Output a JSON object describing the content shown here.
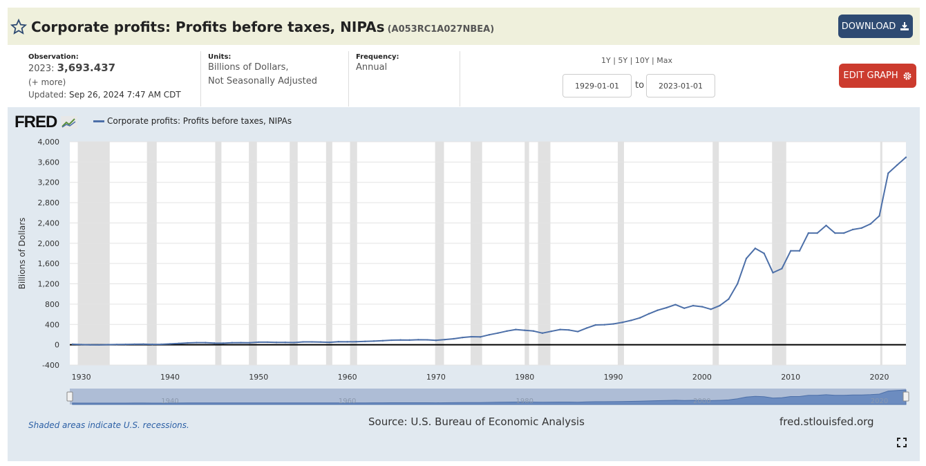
{
  "header": {
    "title": "Corporate profits: Profits before taxes, NIPAs",
    "series_id": "(A053RC1A027NBEA)",
    "download_label": "DOWNLOAD",
    "star_icon": "star-outline-icon",
    "download_icon": "download-icon"
  },
  "observation": {
    "label": "Observation:",
    "period": "2023:",
    "value": "3,693.437",
    "more": "(+ more)",
    "updated_label": "Updated:",
    "updated_value": "Sep 26, 2024 7:47 AM CDT"
  },
  "units": {
    "label": "Units:",
    "line1": "Billions of Dollars,",
    "line2": "Not Seasonally Adjusted"
  },
  "frequency": {
    "label": "Frequency:",
    "value": "Annual"
  },
  "range": {
    "links": [
      "1Y",
      "5Y",
      "10Y",
      "Max"
    ],
    "start": "1929-01-01",
    "to": "to",
    "end": "2023-01-01"
  },
  "edit_graph_label": "EDIT GRAPH",
  "colors": {
    "series": "#4c6fa8",
    "recession": "#e1e1e1",
    "panel": "#e1e9f0",
    "download": "#2e4a72",
    "edit": "#cc3b2e"
  },
  "footer": {
    "recession_note": "Shaded areas indicate U.S. recessions.",
    "source": "Source: U.S. Bureau of Economic Analysis",
    "url": "fred.stlouisfed.org"
  },
  "logo_text": "FRED",
  "chart_data": {
    "type": "line",
    "ylabel": "Billions of Dollars",
    "ylim": [
      -400,
      4000
    ],
    "xlim": [
      1928.7,
      2023
    ],
    "y_ticks": [
      -400,
      0,
      400,
      800,
      1200,
      1600,
      2000,
      2400,
      2800,
      3200,
      3600,
      4000
    ],
    "y_tick_labels": [
      "-400",
      "0",
      "400",
      "800",
      "1,200",
      "1,600",
      "2,000",
      "2,400",
      "2,800",
      "3,200",
      "3,600",
      "4,000"
    ],
    "x_ticks": [
      1930,
      1940,
      1950,
      1960,
      1970,
      1980,
      1990,
      2000,
      2010,
      2020
    ],
    "navigator_ticks": [
      1940,
      1960,
      1980,
      2000,
      2020
    ],
    "grid": true,
    "recessions": [
      [
        1929.6,
        1933.2
      ],
      [
        1937.4,
        1938.5
      ],
      [
        1945.1,
        1945.8
      ],
      [
        1948.9,
        1949.8
      ],
      [
        1953.5,
        1954.4
      ],
      [
        1957.6,
        1958.3
      ],
      [
        1960.3,
        1961.1
      ],
      [
        1969.9,
        1970.9
      ],
      [
        1973.9,
        1975.2
      ],
      [
        1980.0,
        1980.5
      ],
      [
        1981.5,
        1982.9
      ],
      [
        1990.5,
        1991.2
      ],
      [
        2001.2,
        2001.9
      ],
      [
        2007.9,
        2009.5
      ],
      [
        2020.1,
        2020.3
      ]
    ],
    "series": [
      {
        "name": "Corporate profits: Profits before taxes, NIPAs",
        "x": [
          1929,
          1930,
          1931,
          1932,
          1933,
          1934,
          1935,
          1936,
          1937,
          1938,
          1939,
          1940,
          1941,
          1942,
          1943,
          1944,
          1945,
          1946,
          1947,
          1948,
          1949,
          1950,
          1951,
          1952,
          1953,
          1954,
          1955,
          1956,
          1957,
          1958,
          1959,
          1960,
          1961,
          1962,
          1963,
          1964,
          1965,
          1966,
          1967,
          1968,
          1969,
          1970,
          1971,
          1972,
          1973,
          1974,
          1975,
          1976,
          1977,
          1978,
          1979,
          1980,
          1981,
          1982,
          1983,
          1984,
          1985,
          1986,
          1987,
          1988,
          1989,
          1990,
          1991,
          1992,
          1993,
          1994,
          1995,
          1996,
          1997,
          1998,
          1999,
          2000,
          2001,
          2002,
          2003,
          2004,
          2005,
          2006,
          2007,
          2008,
          2009,
          2010,
          2011,
          2012,
          2013,
          2014,
          2015,
          2016,
          2017,
          2018,
          2019,
          2020,
          2021,
          2022,
          2023
        ],
        "values": [
          10,
          3,
          -1,
          -3,
          2,
          5,
          7,
          10,
          11,
          7,
          9,
          17,
          27,
          36,
          42,
          41,
          33,
          31,
          40,
          42,
          38,
          51,
          51,
          46,
          46,
          43,
          56,
          56,
          54,
          48,
          60,
          58,
          60,
          66,
          72,
          79,
          90,
          95,
          92,
          99,
          97,
          87,
          102,
          118,
          143,
          158,
          154,
          196,
          231,
          270,
          300,
          285,
          270,
          230,
          265,
          300,
          290,
          260,
          330,
          390,
          395,
          410,
          440,
          480,
          530,
          610,
          680,
          730,
          790,
          720,
          770,
          750,
          700,
          770,
          900,
          1200,
          1700,
          1900,
          1800,
          1420,
          1500,
          1850,
          1850,
          2200,
          2200,
          2350,
          2200,
          2200,
          2270,
          2300,
          2380,
          2540,
          3380,
          3540,
          3693
        ]
      }
    ]
  }
}
